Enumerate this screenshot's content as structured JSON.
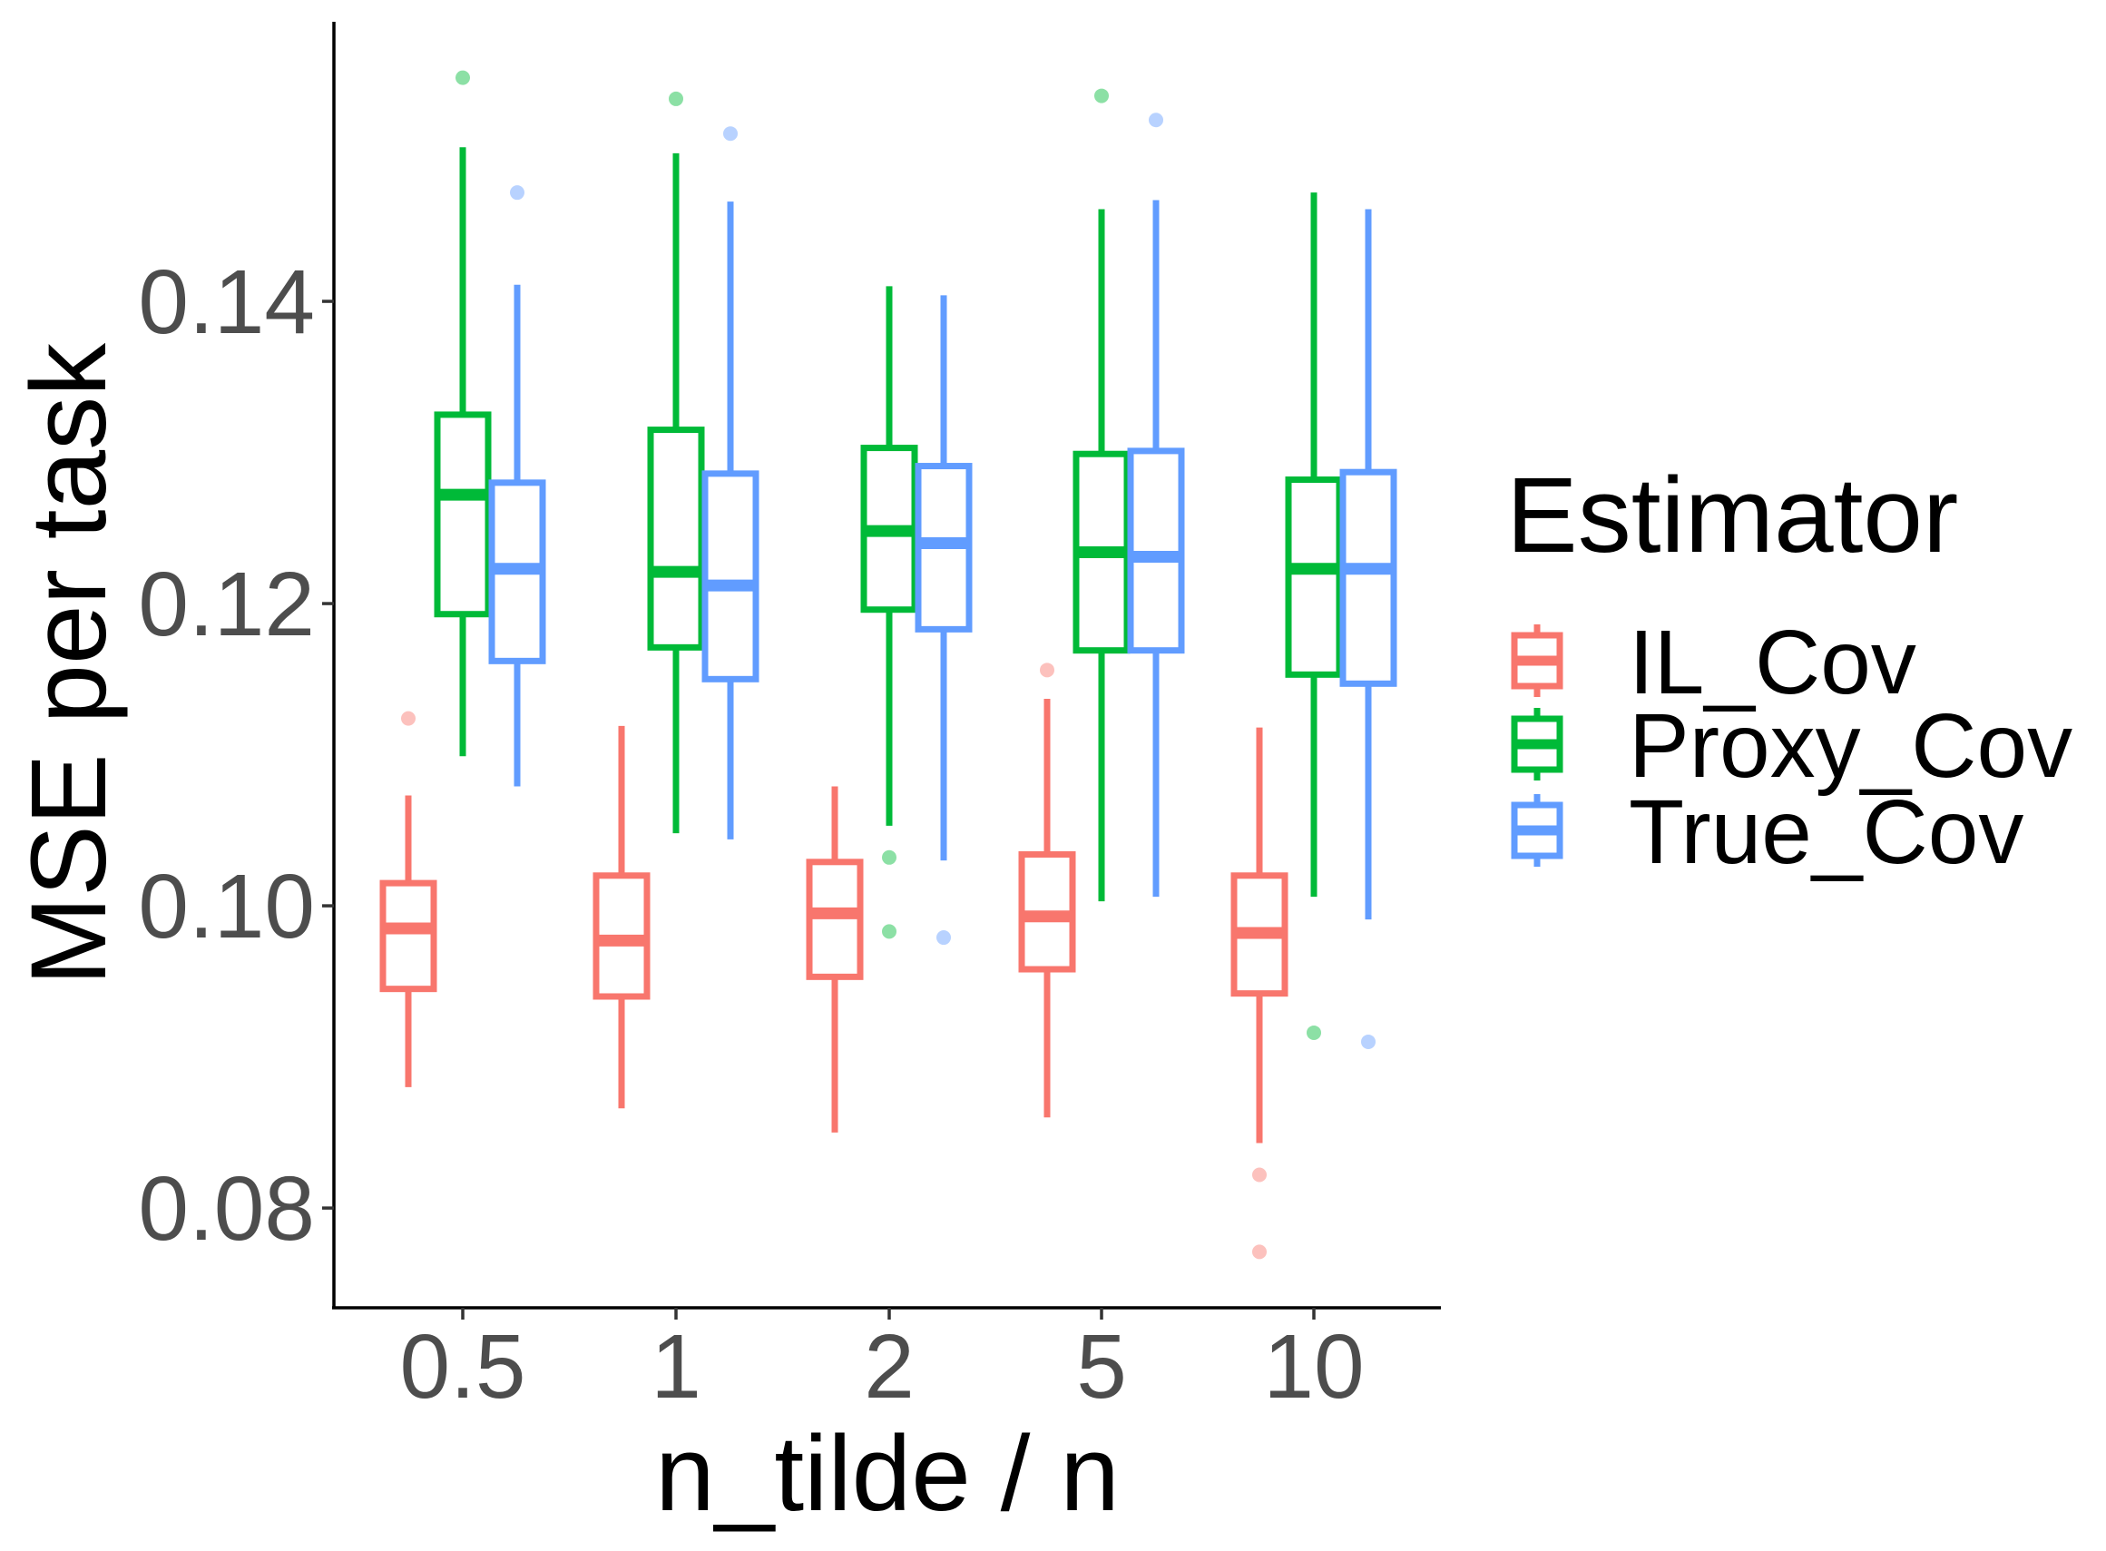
{
  "chart_data": {
    "type": "boxplot",
    "xlabel": "n_tilde / n",
    "ylabel": "MSE per task",
    "categories": [
      "0.5",
      "1",
      "2",
      "5",
      "10"
    ],
    "ylim": [
      0.0734,
      0.1585
    ],
    "yticks": [
      0.08,
      0.1,
      0.12,
      0.14
    ],
    "ytick_labels": [
      "0.08",
      "0.10",
      "0.12",
      "0.14"
    ],
    "grid": false,
    "legend": {
      "title": "Estimator",
      "position": "right"
    },
    "series": [
      {
        "name": "IL_Cov",
        "color": "#F8766D",
        "boxes": [
          {
            "category": "0.5",
            "whisker_low": 0.088,
            "q1": 0.0945,
            "median": 0.0985,
            "q3": 0.1015,
            "whisker_high": 0.1073,
            "outliers": [
              0.1124
            ]
          },
          {
            "category": "1",
            "whisker_low": 0.0866,
            "q1": 0.094,
            "median": 0.0977,
            "q3": 0.102,
            "whisker_high": 0.1119,
            "outliers": []
          },
          {
            "category": "2",
            "whisker_low": 0.085,
            "q1": 0.0953,
            "median": 0.0995,
            "q3": 0.1029,
            "whisker_high": 0.1079,
            "outliers": []
          },
          {
            "category": "5",
            "whisker_low": 0.086,
            "q1": 0.0958,
            "median": 0.0993,
            "q3": 0.1034,
            "whisker_high": 0.1137,
            "outliers": [
              0.1156
            ]
          },
          {
            "category": "10",
            "whisker_low": 0.0843,
            "q1": 0.0942,
            "median": 0.0982,
            "q3": 0.102,
            "whisker_high": 0.1118,
            "outliers": [
              0.0822,
              0.0771
            ]
          }
        ]
      },
      {
        "name": "Proxy_Cov",
        "color": "#00BA38",
        "boxes": [
          {
            "category": "0.5",
            "whisker_low": 0.1099,
            "q1": 0.1193,
            "median": 0.1272,
            "q3": 0.1325,
            "whisker_high": 0.1502,
            "outliers": [
              0.1548
            ]
          },
          {
            "category": "1",
            "whisker_low": 0.1048,
            "q1": 0.1171,
            "median": 0.1221,
            "q3": 0.1315,
            "whisker_high": 0.1498,
            "outliers": [
              0.1534
            ]
          },
          {
            "category": "2",
            "whisker_low": 0.1053,
            "q1": 0.1196,
            "median": 0.1248,
            "q3": 0.1303,
            "whisker_high": 0.141,
            "outliers": [
              0.1032,
              0.0983
            ]
          },
          {
            "category": "5",
            "whisker_low": 0.1003,
            "q1": 0.1169,
            "median": 0.1234,
            "q3": 0.1299,
            "whisker_high": 0.1461,
            "outliers": [
              0.1536
            ]
          },
          {
            "category": "10",
            "whisker_low": 0.1006,
            "q1": 0.1153,
            "median": 0.1223,
            "q3": 0.1282,
            "whisker_high": 0.1472,
            "outliers": [
              0.0916
            ]
          }
        ]
      },
      {
        "name": "True_Cov",
        "color": "#619CFF",
        "boxes": [
          {
            "category": "0.5",
            "whisker_low": 0.1079,
            "q1": 0.1162,
            "median": 0.1223,
            "q3": 0.128,
            "whisker_high": 0.1411,
            "outliers": [
              0.1472
            ]
          },
          {
            "category": "1",
            "whisker_low": 0.1044,
            "q1": 0.115,
            "median": 0.1212,
            "q3": 0.1286,
            "whisker_high": 0.1466,
            "outliers": [
              0.1511
            ]
          },
          {
            "category": "2",
            "whisker_low": 0.103,
            "q1": 0.1183,
            "median": 0.124,
            "q3": 0.1291,
            "whisker_high": 0.1404,
            "outliers": [
              0.0979
            ]
          },
          {
            "category": "5",
            "whisker_low": 0.1006,
            "q1": 0.1169,
            "median": 0.1231,
            "q3": 0.1301,
            "whisker_high": 0.1467,
            "outliers": [
              0.152
            ]
          },
          {
            "category": "10",
            "whisker_low": 0.0991,
            "q1": 0.1147,
            "median": 0.1223,
            "q3": 0.1287,
            "whisker_high": 0.1461,
            "outliers": [
              0.091
            ]
          }
        ]
      }
    ]
  }
}
